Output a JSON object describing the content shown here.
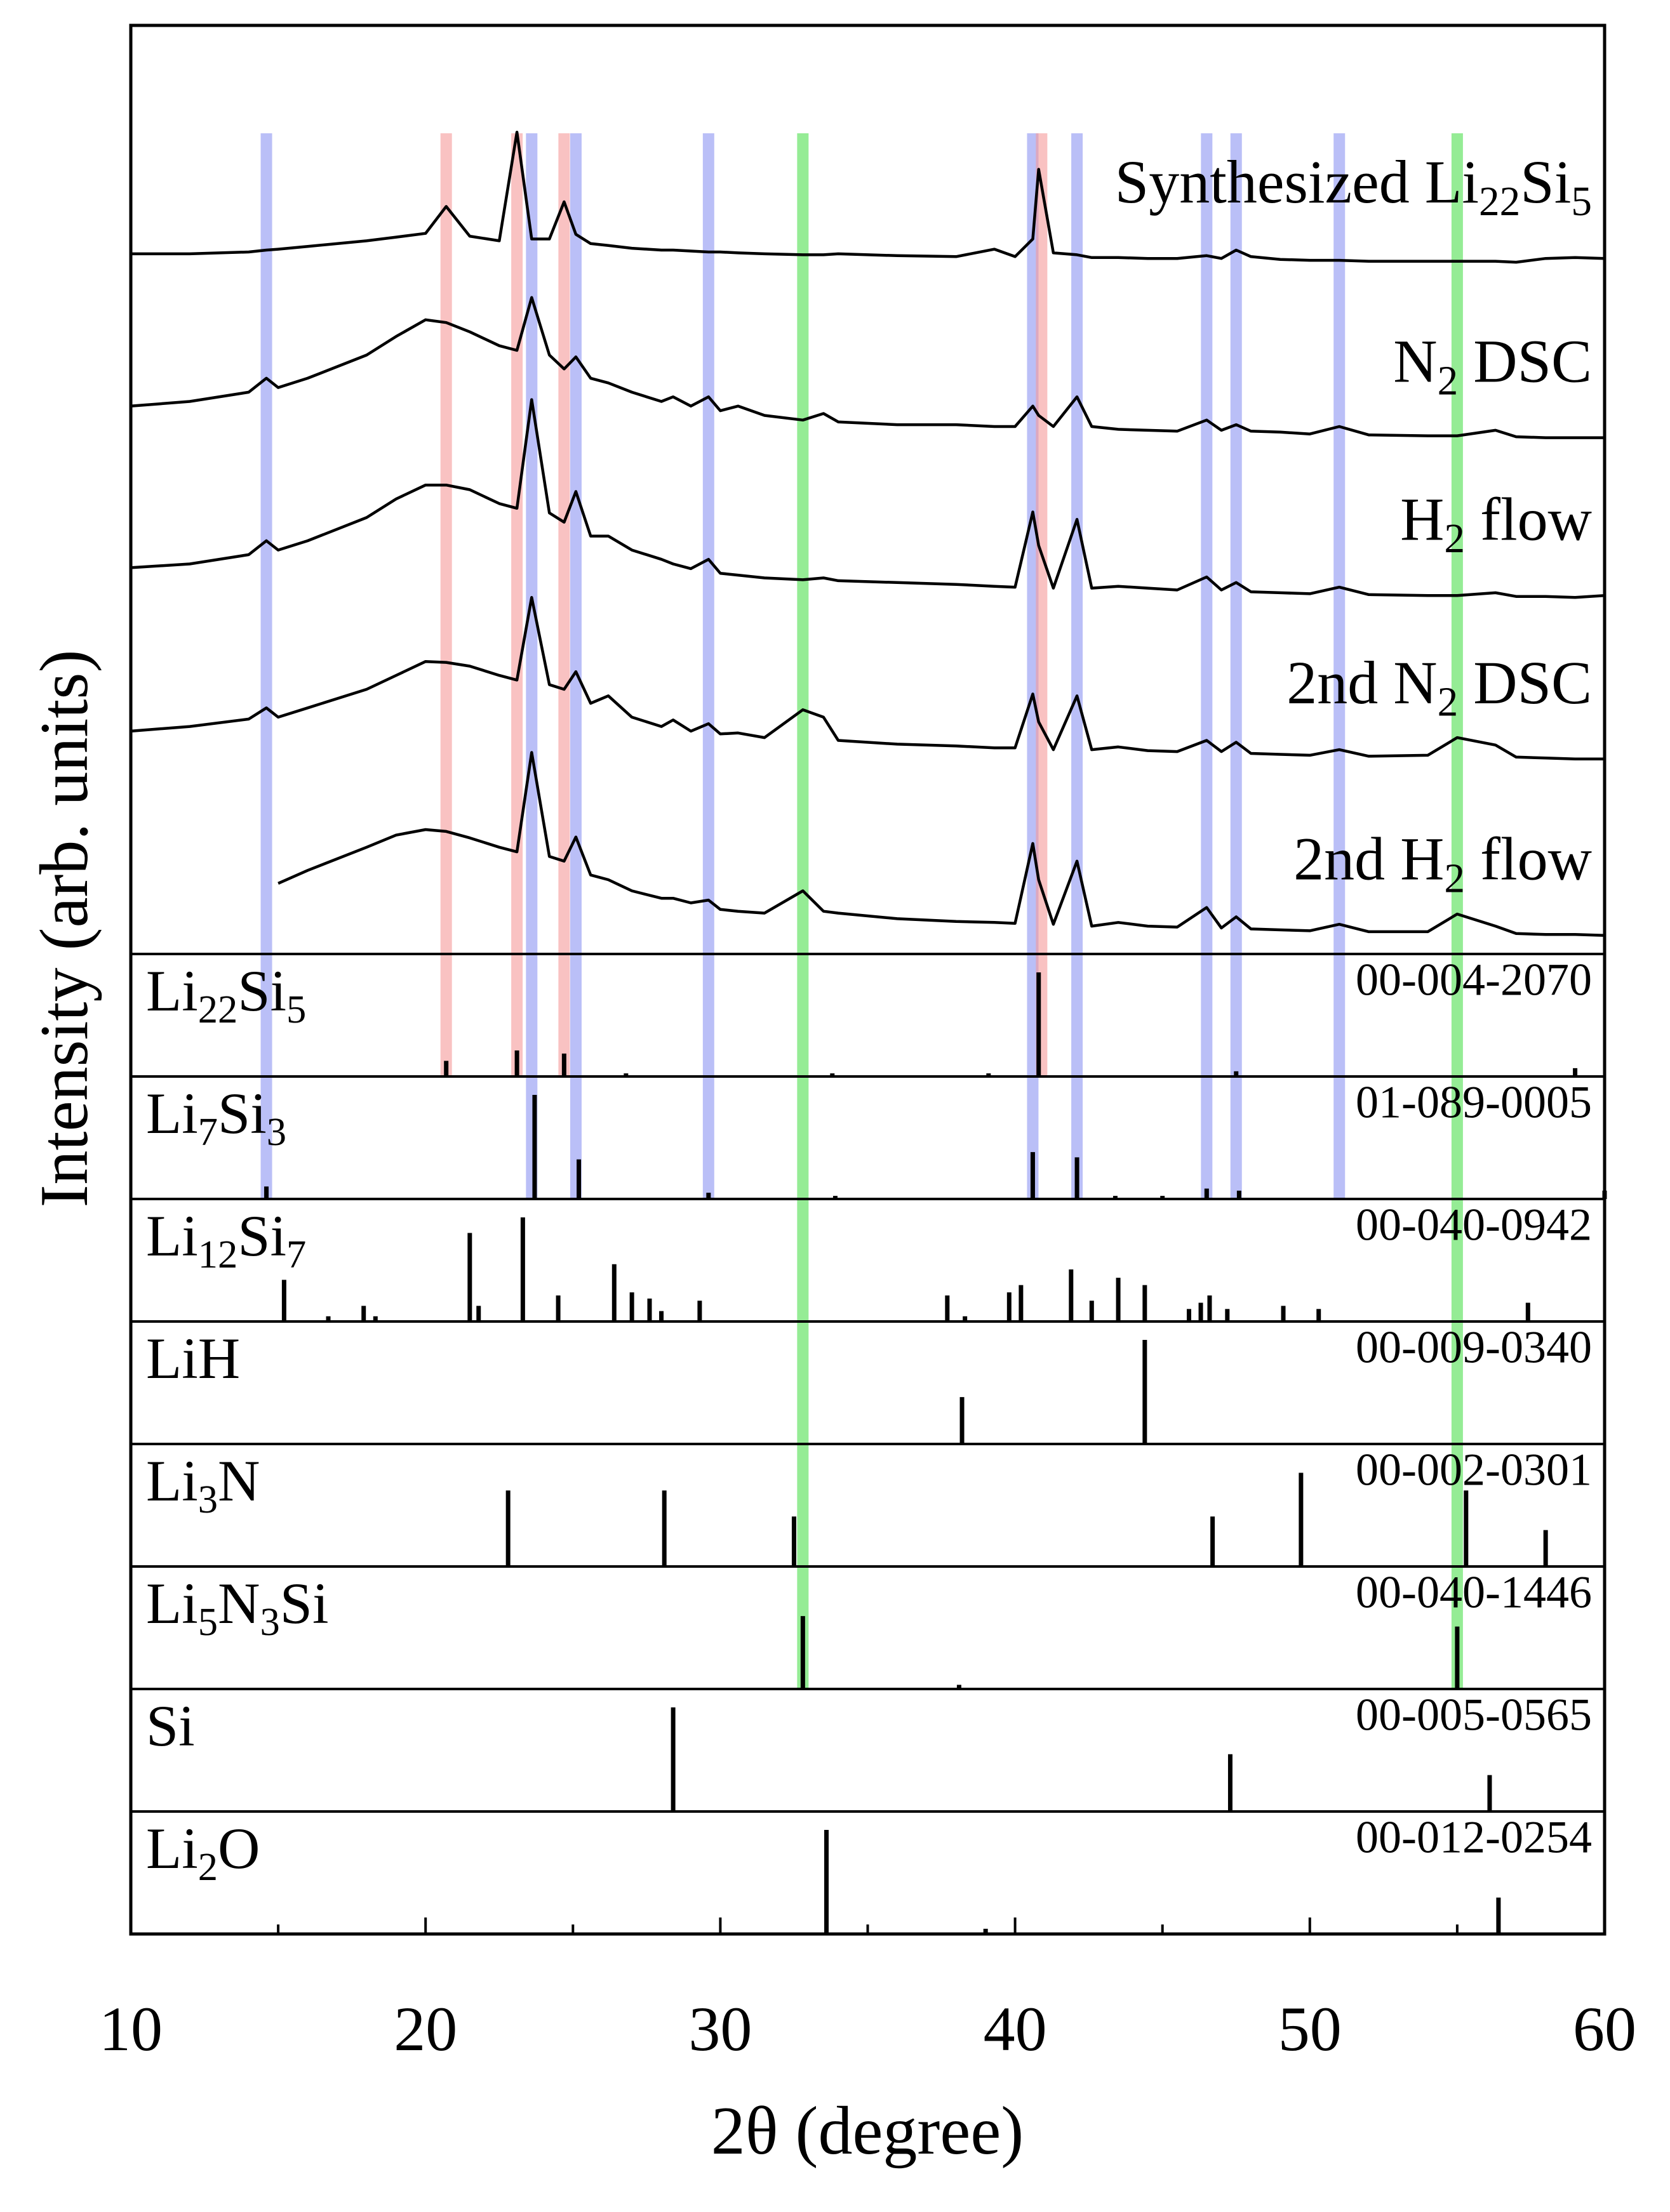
{
  "chart_data": {
    "type": "xrd",
    "x_label": "2θ (degree)",
    "y_label": "Intensity (arb. units)",
    "xlim": [
      10,
      60
    ],
    "xticks": [
      10,
      20,
      30,
      40,
      50,
      60
    ],
    "minor_xticks": [
      15,
      25,
      35,
      45,
      55
    ],
    "ylim": [
      0,
      100
    ],
    "x": [
      10,
      12,
      14,
      14.6,
      15,
      16,
      18,
      19,
      20,
      20.7,
      21.5,
      22.5,
      23.1,
      23.6,
      24.2,
      24.7,
      25.1,
      25.6,
      26.2,
      27,
      28,
      28.4,
      29,
      29.6,
      30,
      30.6,
      31.5,
      32.8,
      33.5,
      34,
      36,
      38,
      39.3,
      40,
      40.6,
      40.8,
      41.3,
      42.1,
      42.6,
      43.5,
      44.5,
      45.5,
      46.5,
      47,
      47.5,
      48,
      49,
      50,
      51,
      52,
      54,
      55,
      56.3,
      57,
      58,
      59,
      60
    ],
    "series": [
      {
        "name": "Synthesized Li22Si5",
        "color": "#000000",
        "values": [
          75.4,
          75.4,
          75.6,
          75.8,
          75.9,
          76.2,
          76.8,
          77.2,
          77.6,
          80.5,
          77.3,
          76.8,
          88.5,
          77,
          77,
          81,
          77.5,
          76.5,
          76.3,
          76,
          75.8,
          75.8,
          75.7,
          75.6,
          75.6,
          75.5,
          75.4,
          75.3,
          75.3,
          75.4,
          75.2,
          75.1,
          75.9,
          75.1,
          77,
          84.5,
          75.5,
          75.3,
          75,
          75,
          74.9,
          74.9,
          75.2,
          74.9,
          75.8,
          75.1,
          74.8,
          74.7,
          74.7,
          74.6,
          74.6,
          74.6,
          74.6,
          74.5,
          74.9,
          75,
          74.9
        ]
      },
      {
        "name": "N2 DSC",
        "color": "#000000",
        "values": [
          59,
          59.5,
          60.5,
          62,
          61,
          62,
          64.5,
          66.5,
          68.3,
          68,
          67,
          65.5,
          65,
          70.7,
          64.5,
          63,
          64.3,
          62,
          61.5,
          60.5,
          59.5,
          60,
          59,
          60,
          58.5,
          59,
          58,
          57.5,
          58.2,
          57.3,
          57,
          57,
          56.8,
          56.8,
          59,
          58,
          56.8,
          60,
          56.8,
          56.5,
          56.4,
          56.3,
          57.5,
          56.4,
          57,
          56.3,
          56.2,
          56,
          56.8,
          55.9,
          55.8,
          55.8,
          56.4,
          55.7,
          55.6,
          55.6,
          55.6
        ]
      },
      {
        "name": "H2 flow",
        "color": "#000000",
        "values": [
          41.6,
          42,
          43,
          44.5,
          43.5,
          44.5,
          47,
          49,
          50.5,
          50.5,
          50,
          48.5,
          48,
          59.7,
          47.5,
          46.5,
          49.8,
          45,
          45,
          43.5,
          42.5,
          42,
          41.5,
          42.5,
          41,
          40.8,
          40.5,
          40.3,
          40.5,
          40.2,
          40,
          39.8,
          39.6,
          39.5,
          47.6,
          44,
          39.4,
          46.8,
          39.4,
          39.6,
          39.4,
          39.2,
          40.6,
          39.2,
          40,
          39,
          38.9,
          38.8,
          39.5,
          38.7,
          38.6,
          38.6,
          38.9,
          38.5,
          38.5,
          38.4,
          38.6
        ]
      },
      {
        "name": "2nd N2 DSC",
        "color": "#000000",
        "values": [
          24,
          24.5,
          25.3,
          26.5,
          25.5,
          26.5,
          28.5,
          30,
          31.5,
          31.4,
          31,
          30,
          29.5,
          38.4,
          29,
          28.5,
          30.4,
          27,
          27.8,
          25.5,
          24.5,
          25.2,
          24,
          24.8,
          23.7,
          23.8,
          23.3,
          26.3,
          25.5,
          23,
          22.6,
          22.4,
          22.2,
          22.2,
          28,
          25,
          22,
          27.8,
          22,
          22.3,
          21.9,
          21.8,
          23,
          21.8,
          22.8,
          21.6,
          21.5,
          21.4,
          22,
          21.3,
          21.4,
          23.3,
          22.5,
          21.2,
          21.1,
          21,
          21
        ]
      },
      {
        "name": "2nd H2 flow",
        "color": "#000000",
        "values": [
          null,
          null,
          null,
          null,
          7.6,
          9,
          11.5,
          12.8,
          13.4,
          13.2,
          12.5,
          11.5,
          11,
          21.7,
          10.5,
          10,
          12.6,
          8.5,
          8,
          6.8,
          6,
          6,
          5.5,
          5.8,
          4.8,
          4.6,
          4.4,
          6.8,
          4.6,
          4.4,
          3.8,
          3.5,
          3.4,
          3.3,
          11.9,
          8,
          3.2,
          10,
          3,
          3.4,
          3,
          2.9,
          5,
          2.8,
          4,
          2.7,
          2.6,
          2.5,
          3.2,
          2.4,
          2.4,
          4.3,
          3,
          2.2,
          2.1,
          2.1,
          2
        ]
      }
    ],
    "references": [
      {
        "name": "Li22Si5",
        "code": "00-004-2070",
        "positions": [
          20.7,
          23.1,
          24.7,
          26.8,
          33.8,
          39.1,
          40.8,
          47.5,
          59
        ],
        "intensities": [
          15,
          25,
          22,
          3,
          3,
          3,
          100,
          5,
          8
        ]
      },
      {
        "name": "Li7Si3",
        "code": "01-089-0005",
        "positions": [
          14.6,
          23.7,
          25.2,
          29.6,
          33.9,
          40.6,
          42.1,
          43.4,
          45,
          46.5,
          47.6,
          60
        ],
        "intensities": [
          12,
          100,
          38,
          6,
          3,
          45,
          40,
          3,
          3,
          10,
          8,
          8
        ]
      },
      {
        "name": "Li12Si7",
        "code": "00-040-0942",
        "positions": [
          15.2,
          16.7,
          17.9,
          18.3,
          21.5,
          21.8,
          23.3,
          24.5,
          26.4,
          27,
          27.6,
          28,
          29.3,
          37.7,
          38.3,
          39.8,
          40.2,
          41.9,
          42.6,
          43.5,
          44.4,
          45.9,
          46.3,
          46.6,
          47.2,
          49.1,
          50.3,
          57.4
        ],
        "intensities": [
          40,
          5,
          15,
          5,
          85,
          15,
          100,
          25,
          55,
          28,
          22,
          10,
          20,
          25,
          5,
          28,
          35,
          50,
          20,
          42,
          35,
          12,
          18,
          25,
          12,
          15,
          12,
          18
        ]
      },
      {
        "name": "LiH",
        "code": "00-009-0340",
        "positions": [
          38.2,
          44.4
        ],
        "intensities": [
          45,
          100
        ]
      },
      {
        "name": "Li3N",
        "code": "00-002-0301",
        "positions": [
          22.8,
          28.1,
          32.5,
          46.7,
          49.7,
          55.3,
          58
        ],
        "intensities": [
          73,
          73,
          48,
          48,
          90,
          73,
          35
        ]
      },
      {
        "name": "Li5N3Si",
        "code": "00-040-1446",
        "positions": [
          32.8,
          38.1,
          55
        ],
        "intensities": [
          70,
          4,
          60
        ]
      },
      {
        "name": "Si",
        "code": "00-005-0565",
        "positions": [
          28.4,
          47.3,
          56.1
        ],
        "intensities": [
          100,
          55,
          35
        ]
      },
      {
        "name": "Li2O",
        "code": "00-012-0254",
        "positions": [
          33.6,
          39,
          56.4
        ],
        "intensities": [
          100,
          5,
          35
        ]
      }
    ],
    "bands": [
      {
        "color": "#8c95f2",
        "through": "Li7Si3",
        "positions": [
          14.6,
          23.6,
          25.1,
          29.6,
          40.6,
          42.1,
          46.5,
          47.5,
          51
        ]
      },
      {
        "color": "#f59a9a",
        "through": "Li22Si5",
        "positions": [
          20.7,
          23.1,
          24.7,
          40.9
        ]
      },
      {
        "color": "#4fe04f",
        "through": "Li5N3Si",
        "positions": [
          32.8,
          55
        ]
      }
    ]
  }
}
